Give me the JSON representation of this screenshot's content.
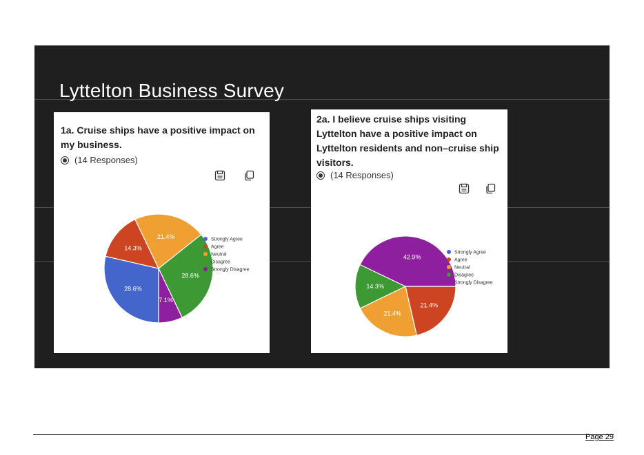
{
  "slide": {
    "title": "Lyttelton Business Survey",
    "background": "#1f1f1f"
  },
  "charts": [
    {
      "question": "1a. Cruise ships have a positive impact on my business.",
      "responses": "(14 Responses)"
    },
    {
      "question": "2a. I believe cruise ships visiting Lyttelton have a positive impact on Lyttelton residents and non–cruise ship visitors.",
      "responses": "(14 Responses)"
    }
  ],
  "chart_data": [
    {
      "type": "pie",
      "title": "1a. Cruise ships have a positive impact on my business.",
      "legend_position": "top-right",
      "slices": [
        {
          "label": "Strongly Agree",
          "value": 28.6,
          "display": "28.6%",
          "color": "#4466cc"
        },
        {
          "label": "Agree",
          "value": 14.3,
          "display": "14.3%",
          "color": "#cc4422"
        },
        {
          "label": "Neutral",
          "value": 21.4,
          "display": "21.4%",
          "color": "#f0a033"
        },
        {
          "label": "Disagree",
          "value": 28.6,
          "display": "28.6%",
          "color": "#3d9933"
        },
        {
          "label": "Strongly Disagree",
          "value": 7.1,
          "display": "7.1%",
          "color": "#8e1f9e"
        }
      ]
    },
    {
      "type": "pie",
      "title": "2a. I believe cruise ships visiting Lyttelton have a positive impact on Lyttelton residents and non–cruise ship visitors.",
      "legend_position": "top-right",
      "slices": [
        {
          "label": "Strongly Agree",
          "value": 0,
          "display": "",
          "color": "#4466cc"
        },
        {
          "label": "Agree",
          "value": 21.4,
          "display": "21.4%",
          "color": "#cc4422"
        },
        {
          "label": "Neutral",
          "value": 21.4,
          "display": "21.4%",
          "color": "#f0a033"
        },
        {
          "label": "Disagree",
          "value": 14.3,
          "display": "14.3%",
          "color": "#3d9933"
        },
        {
          "label": "Strongly Disagree",
          "value": 42.9,
          "display": "42.9%",
          "color": "#8e1f9e"
        }
      ]
    }
  ],
  "icons": [
    "save-icon",
    "copy-icon"
  ],
  "footer": {
    "page": "Page 29"
  }
}
